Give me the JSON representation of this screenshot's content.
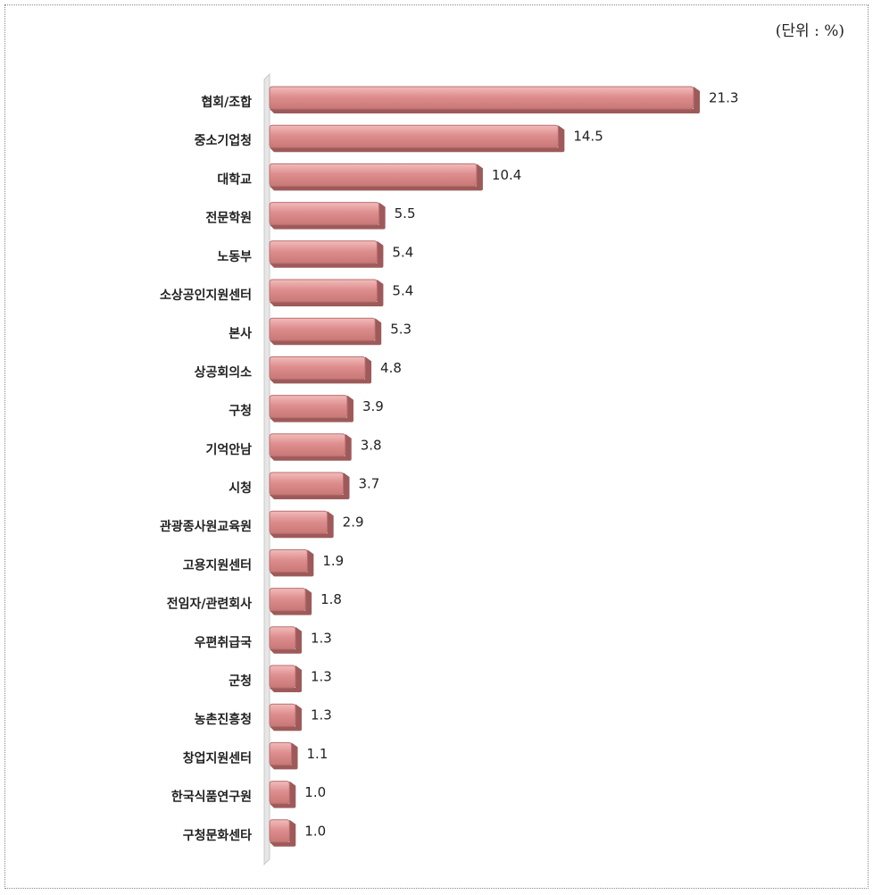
{
  "unit_label": "(단위 : %)",
  "colors": {
    "bar_fill": "#dd8c8c",
    "bar_top": "#f0b4b4",
    "bar_shadow": "#9e5a5a",
    "bar_stroke": "#b96f6f",
    "axis": "#c8c8c8"
  },
  "chart_data": {
    "type": "bar",
    "orientation": "horizontal",
    "title": "",
    "xlabel": "",
    "ylabel": "",
    "unit": "%",
    "xlim": [
      0,
      23
    ],
    "grid": false,
    "categories": [
      "협회/조합",
      "중소기업청",
      "대학교",
      "전문학원",
      "노동부",
      "소상공인지원센터",
      "본사",
      "상공회의소",
      "구청",
      "기억안남",
      "시청",
      "관광종사원교육원",
      "고용지원센터",
      "전임자/관련회사",
      "우편취급국",
      "군청",
      "농촌진흥청",
      "창업지원센터",
      "한국식품연구원",
      "구청문화센타"
    ],
    "values": [
      21.3,
      14.5,
      10.4,
      5.5,
      5.4,
      5.4,
      5.3,
      4.8,
      3.9,
      3.8,
      3.7,
      2.9,
      1.9,
      1.8,
      1.3,
      1.3,
      1.3,
      1.1,
      1.0,
      1.0
    ],
    "value_labels": [
      "21.3",
      "14.5",
      "10.4",
      "5.5",
      "5.4",
      "5.4",
      "5.3",
      "4.8",
      "3.9",
      "3.8",
      "3.7",
      "2.9",
      "1.9",
      "1.8",
      "1.3",
      "1.3",
      "1.3",
      "1.1",
      "1.0",
      "1.0"
    ]
  }
}
